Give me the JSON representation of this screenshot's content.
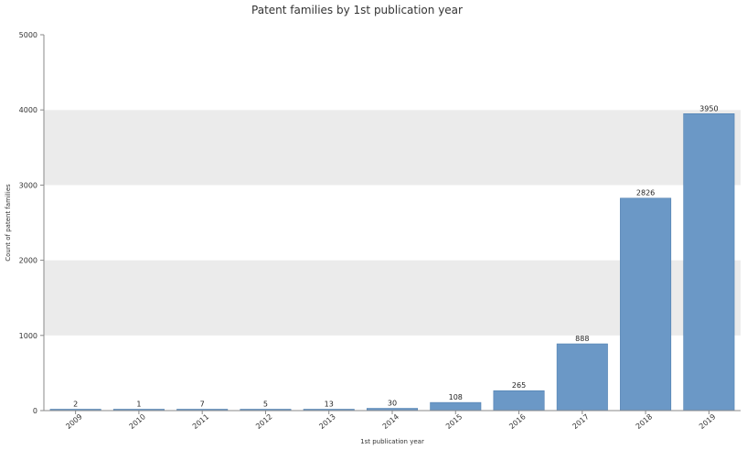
{
  "chart_data": {
    "type": "bar",
    "title": "Patent families by 1st publication year",
    "xlabel": "1st publication year",
    "ylabel": "Count of patent families",
    "categories": [
      "2009",
      "2010",
      "2011",
      "2012",
      "2013",
      "2014",
      "2015",
      "2016",
      "2017",
      "2018",
      "2019"
    ],
    "values": [
      2,
      1,
      7,
      5,
      13,
      30,
      108,
      265,
      888,
      2826,
      3950
    ],
    "ylim": [
      0,
      5000
    ],
    "yticks": [
      0,
      1000,
      2000,
      3000,
      4000,
      5000
    ],
    "grid": true,
    "legend": "none",
    "colors": {
      "bar": "#6b98c6",
      "bar_stroke": "#4f7fb0",
      "band": "#ebebeb",
      "axis": "#888888"
    }
  }
}
